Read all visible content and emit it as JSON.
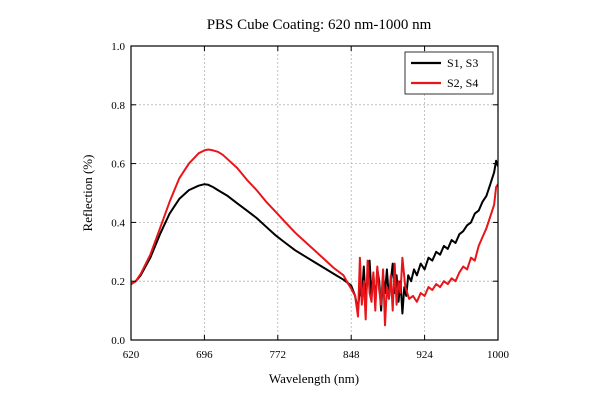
{
  "chart_data": {
    "type": "line",
    "title": "PBS Cube Coating: 620 nm-1000 nm",
    "xlabel": "Wavelength (nm)",
    "ylabel": "Reflection (%)",
    "xlim": [
      620,
      1000
    ],
    "ylim": [
      0.0,
      1.0
    ],
    "xticks": [
      "620",
      "696",
      "772",
      "848",
      "924",
      "1000"
    ],
    "yticks": [
      "0.0",
      "0.2",
      "0.4",
      "0.6",
      "0.8",
      "1.0"
    ],
    "grid": true,
    "legend_position": "top-right",
    "series": [
      {
        "name": "S1, S3",
        "color": "#000000",
        "x": [
          620,
          625,
          630,
          640,
          650,
          660,
          670,
          680,
          690,
          696,
          700,
          705,
          710,
          720,
          730,
          740,
          750,
          760,
          770,
          780,
          790,
          800,
          810,
          820,
          830,
          840,
          848,
          852,
          855,
          857,
          859,
          861,
          863,
          865,
          867,
          869,
          871,
          873,
          875,
          877,
          879,
          881,
          883,
          885,
          887,
          889,
          891,
          893,
          895,
          897,
          899,
          901,
          903,
          905,
          907,
          910,
          913,
          916,
          920,
          924,
          928,
          932,
          936,
          940,
          944,
          948,
          952,
          956,
          960,
          964,
          968,
          972,
          976,
          980,
          984,
          988,
          992,
          996,
          998,
          1000
        ],
        "y": [
          0.19,
          0.2,
          0.22,
          0.28,
          0.36,
          0.43,
          0.48,
          0.51,
          0.525,
          0.53,
          0.528,
          0.52,
          0.51,
          0.49,
          0.465,
          0.44,
          0.415,
          0.385,
          0.355,
          0.33,
          0.305,
          0.285,
          0.265,
          0.245,
          0.225,
          0.205,
          0.185,
          0.15,
          0.1,
          0.18,
          0.14,
          0.25,
          0.12,
          0.23,
          0.27,
          0.15,
          0.22,
          0.13,
          0.24,
          0.2,
          0.1,
          0.22,
          0.16,
          0.24,
          0.14,
          0.2,
          0.26,
          0.16,
          0.22,
          0.13,
          0.2,
          0.09,
          0.18,
          0.15,
          0.22,
          0.2,
          0.24,
          0.22,
          0.26,
          0.24,
          0.28,
          0.27,
          0.3,
          0.29,
          0.32,
          0.31,
          0.34,
          0.33,
          0.36,
          0.37,
          0.39,
          0.4,
          0.43,
          0.44,
          0.47,
          0.49,
          0.53,
          0.57,
          0.61,
          0.59
        ]
      },
      {
        "name": "S2, S4",
        "color": "#e8161b",
        "x": [
          620,
          625,
          630,
          640,
          650,
          660,
          670,
          680,
          690,
          696,
          700,
          705,
          710,
          715,
          720,
          730,
          740,
          750,
          760,
          770,
          780,
          790,
          800,
          810,
          820,
          830,
          840,
          845,
          848,
          852,
          855,
          857,
          859,
          861,
          863,
          865,
          867,
          869,
          871,
          873,
          875,
          877,
          879,
          881,
          883,
          885,
          887,
          889,
          891,
          893,
          895,
          897,
          899,
          901,
          904,
          908,
          912,
          916,
          920,
          924,
          928,
          932,
          936,
          940,
          944,
          948,
          952,
          956,
          960,
          964,
          968,
          972,
          976,
          980,
          984,
          988,
          992,
          996,
          998,
          1000
        ],
        "y": [
          0.19,
          0.2,
          0.225,
          0.29,
          0.38,
          0.47,
          0.55,
          0.6,
          0.635,
          0.645,
          0.648,
          0.645,
          0.64,
          0.63,
          0.615,
          0.585,
          0.545,
          0.51,
          0.47,
          0.435,
          0.4,
          0.365,
          0.335,
          0.305,
          0.275,
          0.245,
          0.22,
          0.19,
          0.175,
          0.15,
          0.08,
          0.28,
          0.12,
          0.2,
          0.07,
          0.27,
          0.16,
          0.13,
          0.23,
          0.1,
          0.25,
          0.17,
          0.12,
          0.24,
          0.05,
          0.18,
          0.14,
          0.22,
          0.1,
          0.26,
          0.12,
          0.2,
          0.16,
          0.28,
          0.18,
          0.14,
          0.15,
          0.13,
          0.16,
          0.15,
          0.18,
          0.17,
          0.19,
          0.18,
          0.2,
          0.19,
          0.21,
          0.2,
          0.23,
          0.25,
          0.24,
          0.28,
          0.27,
          0.32,
          0.35,
          0.38,
          0.42,
          0.46,
          0.52,
          0.53
        ]
      }
    ]
  }
}
